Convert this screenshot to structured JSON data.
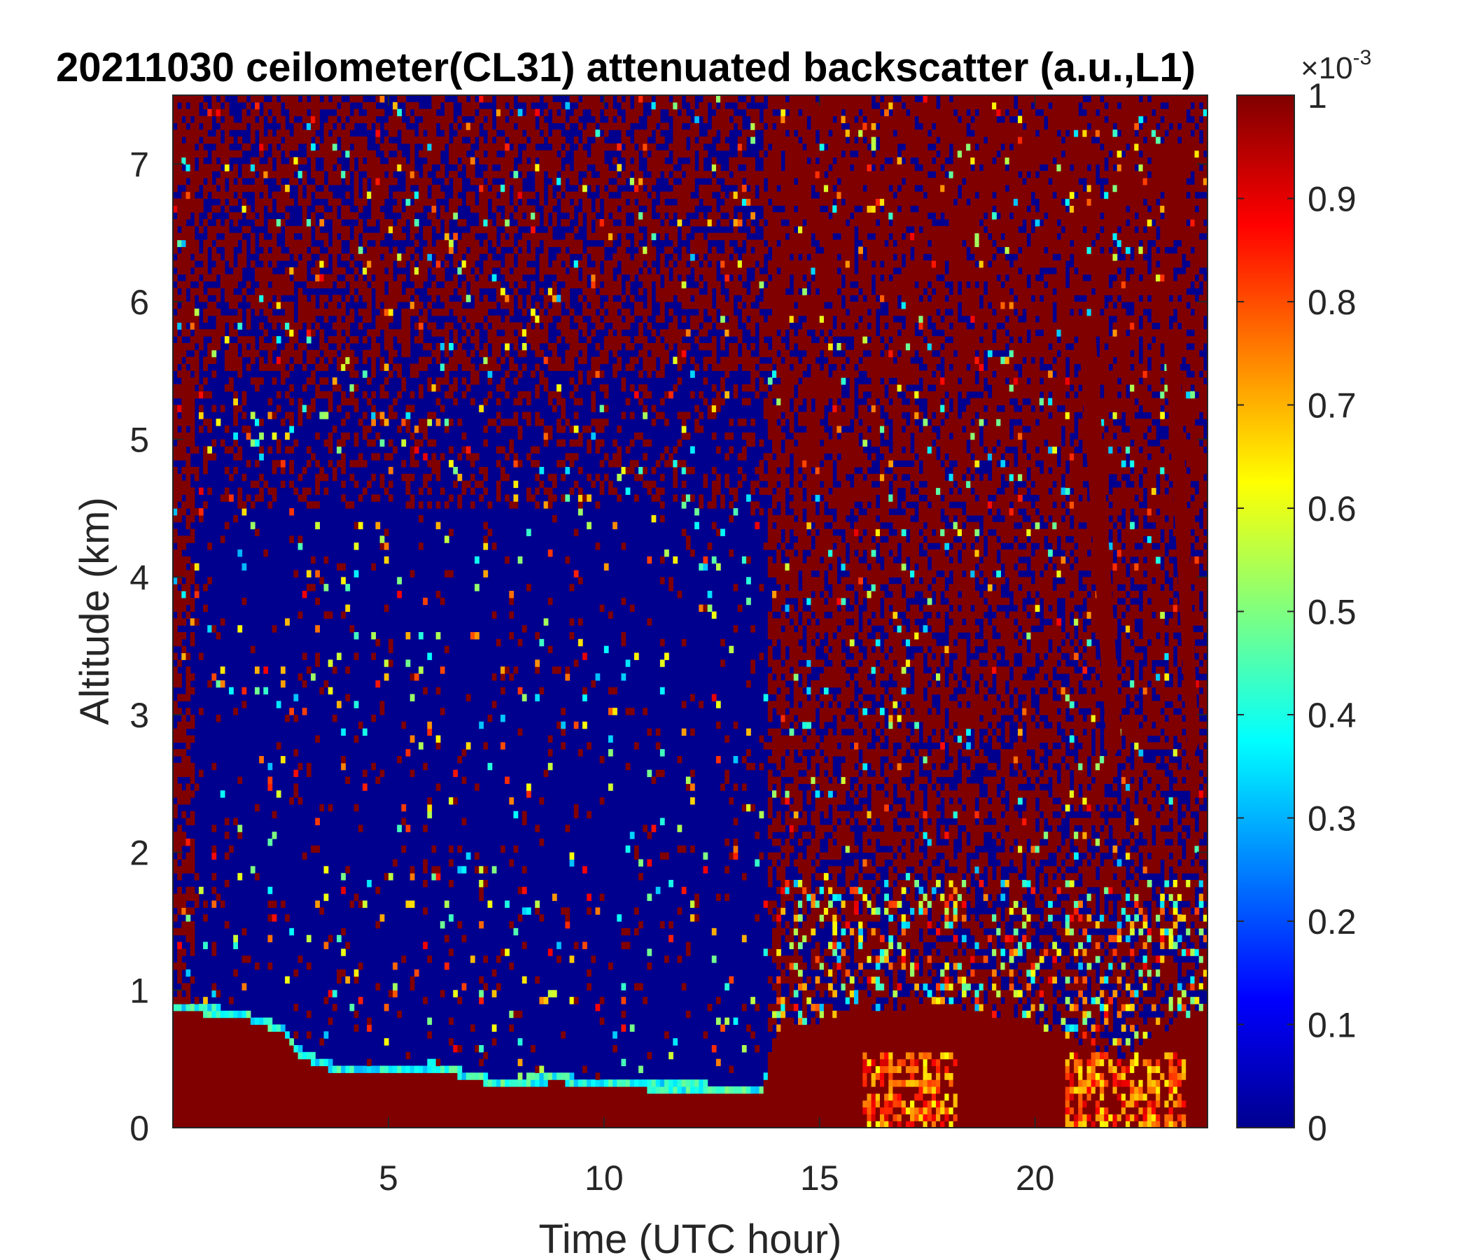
{
  "chart_data": {
    "type": "heatmap",
    "title": "20211030 ceilometer(CL31) attenuated backscatter (a.u.,L1)",
    "xlabel": "Time (UTC hour)",
    "ylabel": "Altitude (km)",
    "xlim": [
      0,
      24
    ],
    "ylim": [
      0,
      7.5
    ],
    "xticks": [
      5,
      10,
      15,
      20
    ],
    "yticks": [
      0,
      1,
      2,
      3,
      4,
      5,
      6,
      7
    ],
    "colorbar": {
      "colormap": "jet",
      "clim": [
        0,
        0.001
      ],
      "exponent_label": "×10",
      "exponent": "-3",
      "ticks": [
        "0",
        "0.1",
        "0.2",
        "0.3",
        "0.4",
        "0.5",
        "0.6",
        "0.7",
        "0.8",
        "0.9",
        "1"
      ]
    },
    "features": {
      "boundary_layer_top_km": [
        {
          "x": 0,
          "y": 0.85
        },
        {
          "x": 1.5,
          "y": 0.8
        },
        {
          "x": 2.5,
          "y": 0.7
        },
        {
          "x": 3,
          "y": 0.5
        },
        {
          "x": 4,
          "y": 0.38
        },
        {
          "x": 5.5,
          "y": 0.38
        },
        {
          "x": 6,
          "y": 0.42
        },
        {
          "x": 7.5,
          "y": 0.3
        },
        {
          "x": 9,
          "y": 0.33
        },
        {
          "x": 10,
          "y": 0.28
        },
        {
          "x": 12,
          "y": 0.27
        },
        {
          "x": 13.7,
          "y": 0.25
        },
        {
          "x": 14,
          "y": 0.7
        },
        {
          "x": 16,
          "y": 0.85
        },
        {
          "x": 18,
          "y": 0.9
        },
        {
          "x": 20,
          "y": 0.75
        },
        {
          "x": 22,
          "y": 0.5
        },
        {
          "x": 24,
          "y": 0.9
        }
      ],
      "clear_region": {
        "x_start_h": 0.5,
        "x_end_h": 13.8,
        "top_km": 5.5
      },
      "high_backscatter_cells_h": [
        [
          16,
          18.2
        ],
        [
          20.7,
          23.5
        ]
      ],
      "virga_streaks_h": [
        [
          21,
          22
        ],
        [
          23,
          23.8
        ]
      ]
    }
  }
}
